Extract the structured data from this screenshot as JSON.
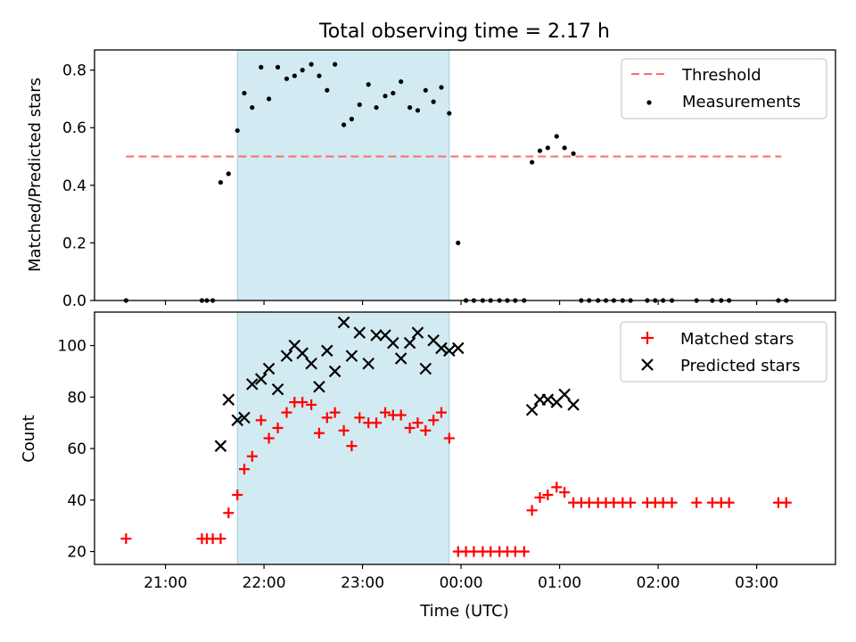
{
  "chart_data": {
    "type": "scatter",
    "title": "Total observing time = 2.17 h",
    "xlabel": "Time (UTC)",
    "xlim_hours": [
      20.28,
      27.8
    ],
    "xticks": [
      {
        "h": 21,
        "label": "21:00"
      },
      {
        "h": 22,
        "label": "22:00"
      },
      {
        "h": 23,
        "label": "23:00"
      },
      {
        "h": 24,
        "label": "00:00"
      },
      {
        "h": 25,
        "label": "01:00"
      },
      {
        "h": 26,
        "label": "02:00"
      },
      {
        "h": 27,
        "label": "03:00"
      }
    ],
    "observing_window_hours": [
      21.73,
      23.88
    ],
    "top": {
      "ylabel": "Matched/Predicted stars",
      "ylim": [
        0,
        0.87
      ],
      "yticks": [
        0.0,
        0.2,
        0.4,
        0.6,
        0.8
      ],
      "yticklabels": [
        "0.0",
        "0.2",
        "0.4",
        "0.6",
        "0.8"
      ],
      "threshold": {
        "name": "Threshold",
        "value": 0.5,
        "x": [
          20.6,
          27.25
        ],
        "color": "#ff6b6b"
      },
      "measurements": {
        "name": "Measurements",
        "color": "#000000",
        "points": [
          [
            20.6,
            0.0
          ],
          [
            21.37,
            0.0
          ],
          [
            21.42,
            0.0
          ],
          [
            21.48,
            0.0
          ],
          [
            21.56,
            0.41
          ],
          [
            21.64,
            0.44
          ],
          [
            21.73,
            0.59
          ],
          [
            21.8,
            0.72
          ],
          [
            21.88,
            0.67
          ],
          [
            21.97,
            0.81
          ],
          [
            22.05,
            0.7
          ],
          [
            22.14,
            0.81
          ],
          [
            22.23,
            0.77
          ],
          [
            22.31,
            0.78
          ],
          [
            22.39,
            0.8
          ],
          [
            22.48,
            0.82
          ],
          [
            22.56,
            0.78
          ],
          [
            22.64,
            0.73
          ],
          [
            22.72,
            0.82
          ],
          [
            22.81,
            0.61
          ],
          [
            22.89,
            0.63
          ],
          [
            22.97,
            0.68
          ],
          [
            23.06,
            0.75
          ],
          [
            23.14,
            0.67
          ],
          [
            23.23,
            0.71
          ],
          [
            23.31,
            0.72
          ],
          [
            23.39,
            0.76
          ],
          [
            23.48,
            0.67
          ],
          [
            23.56,
            0.66
          ],
          [
            23.64,
            0.73
          ],
          [
            23.72,
            0.69
          ],
          [
            23.8,
            0.74
          ],
          [
            23.88,
            0.65
          ],
          [
            23.97,
            0.2
          ],
          [
            24.05,
            0.0
          ],
          [
            24.13,
            0.0
          ],
          [
            24.22,
            0.0
          ],
          [
            24.3,
            0.0
          ],
          [
            24.39,
            0.0
          ],
          [
            24.47,
            0.0
          ],
          [
            24.55,
            0.0
          ],
          [
            24.64,
            0.0
          ],
          [
            24.72,
            0.48
          ],
          [
            24.8,
            0.52
          ],
          [
            24.88,
            0.53
          ],
          [
            24.97,
            0.57
          ],
          [
            25.05,
            0.53
          ],
          [
            25.14,
            0.51
          ],
          [
            25.22,
            0.0
          ],
          [
            25.3,
            0.0
          ],
          [
            25.39,
            0.0
          ],
          [
            25.47,
            0.0
          ],
          [
            25.55,
            0.0
          ],
          [
            25.64,
            0.0
          ],
          [
            25.72,
            0.0
          ],
          [
            25.89,
            0.0
          ],
          [
            25.97,
            0.0
          ],
          [
            26.05,
            0.0
          ],
          [
            26.14,
            0.0
          ],
          [
            26.39,
            0.0
          ],
          [
            26.55,
            0.0
          ],
          [
            26.64,
            0.0
          ],
          [
            26.72,
            0.0
          ],
          [
            27.22,
            0.0
          ],
          [
            27.3,
            0.0
          ]
        ]
      },
      "legend": {
        "position": "upper right",
        "entries": [
          "Threshold",
          "Measurements"
        ]
      }
    },
    "bottom": {
      "ylabel": "Count",
      "ylim": [
        15,
        113
      ],
      "yticks": [
        20,
        40,
        60,
        80,
        100
      ],
      "yticklabels": [
        "20",
        "40",
        "60",
        "80",
        "100"
      ],
      "series": [
        {
          "name": "Matched stars",
          "marker": "+",
          "color": "#ff0000",
          "points": [
            [
              20.6,
              25
            ],
            [
              21.37,
              25
            ],
            [
              21.42,
              25
            ],
            [
              21.48,
              25
            ],
            [
              21.56,
              25
            ],
            [
              21.64,
              35
            ],
            [
              21.73,
              42
            ],
            [
              21.8,
              52
            ],
            [
              21.88,
              57
            ],
            [
              21.97,
              71
            ],
            [
              22.05,
              64
            ],
            [
              22.14,
              68
            ],
            [
              22.23,
              74
            ],
            [
              22.31,
              78
            ],
            [
              22.39,
              78
            ],
            [
              22.48,
              77
            ],
            [
              22.56,
              66
            ],
            [
              22.64,
              72
            ],
            [
              22.72,
              74
            ],
            [
              22.81,
              67
            ],
            [
              22.89,
              61
            ],
            [
              22.97,
              72
            ],
            [
              23.06,
              70
            ],
            [
              23.14,
              70
            ],
            [
              23.23,
              74
            ],
            [
              23.31,
              73
            ],
            [
              23.39,
              73
            ],
            [
              23.48,
              68
            ],
            [
              23.56,
              70
            ],
            [
              23.64,
              67
            ],
            [
              23.72,
              71
            ],
            [
              23.8,
              74
            ],
            [
              23.88,
              64
            ],
            [
              23.97,
              20
            ],
            [
              24.05,
              20
            ],
            [
              24.13,
              20
            ],
            [
              24.22,
              20
            ],
            [
              24.3,
              20
            ],
            [
              24.39,
              20
            ],
            [
              24.47,
              20
            ],
            [
              24.55,
              20
            ],
            [
              24.64,
              20
            ],
            [
              24.72,
              36
            ],
            [
              24.8,
              41
            ],
            [
              24.88,
              42
            ],
            [
              24.97,
              45
            ],
            [
              25.05,
              43
            ],
            [
              25.14,
              39
            ],
            [
              25.22,
              39
            ],
            [
              25.3,
              39
            ],
            [
              25.39,
              39
            ],
            [
              25.47,
              39
            ],
            [
              25.55,
              39
            ],
            [
              25.64,
              39
            ],
            [
              25.72,
              39
            ],
            [
              25.89,
              39
            ],
            [
              25.97,
              39
            ],
            [
              26.05,
              39
            ],
            [
              26.14,
              39
            ],
            [
              26.39,
              39
            ],
            [
              26.55,
              39
            ],
            [
              26.64,
              39
            ],
            [
              26.72,
              39
            ],
            [
              27.22,
              39
            ],
            [
              27.3,
              39
            ]
          ]
        },
        {
          "name": "Predicted stars",
          "marker": "x",
          "color": "#000000",
          "points": [
            [
              21.56,
              61
            ],
            [
              21.64,
              79
            ],
            [
              21.73,
              71
            ],
            [
              21.8,
              72
            ],
            [
              21.88,
              85
            ],
            [
              21.97,
              87
            ],
            [
              22.05,
              91
            ],
            [
              22.14,
              83
            ],
            [
              22.23,
              96
            ],
            [
              22.31,
              100
            ],
            [
              22.39,
              97
            ],
            [
              22.48,
              93
            ],
            [
              22.56,
              84
            ],
            [
              22.64,
              98
            ],
            [
              22.72,
              90
            ],
            [
              22.81,
              109
            ],
            [
              22.89,
              96
            ],
            [
              22.97,
              105
            ],
            [
              23.06,
              93
            ],
            [
              23.14,
              104
            ],
            [
              23.23,
              104
            ],
            [
              23.31,
              101
            ],
            [
              23.39,
              95
            ],
            [
              23.48,
              101
            ],
            [
              23.56,
              105
            ],
            [
              23.64,
              91
            ],
            [
              23.72,
              102
            ],
            [
              23.8,
              99
            ],
            [
              23.88,
              98
            ],
            [
              23.97,
              99
            ],
            [
              24.72,
              75
            ],
            [
              24.8,
              79
            ],
            [
              24.88,
              79
            ],
            [
              24.97,
              78
            ],
            [
              25.05,
              81
            ],
            [
              25.14,
              77
            ]
          ]
        }
      ],
      "legend": {
        "position": "upper right",
        "entries": [
          "Matched stars",
          "Predicted stars"
        ]
      }
    }
  }
}
